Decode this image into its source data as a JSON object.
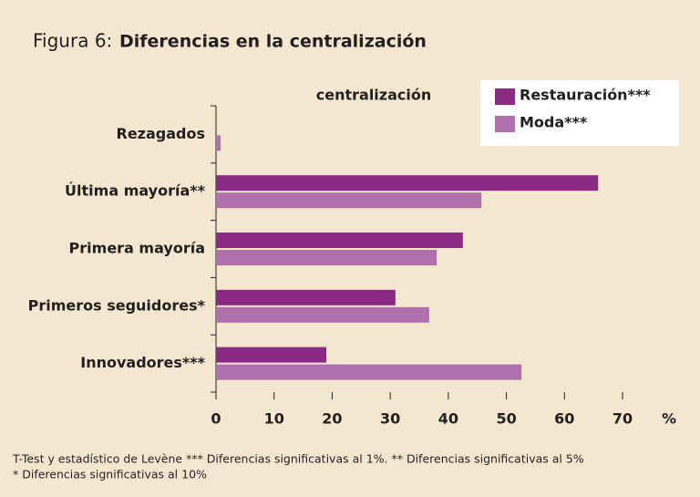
{
  "chart_data": {
    "type": "hbar",
    "figure_label": "Figura 6:",
    "title": "Diferencias en la centralización",
    "subtitle": "centralización",
    "xlabel": "%",
    "categories": [
      "Rezagados",
      "Última mayoría**",
      "Primera mayoría",
      "Primeros seguidores*",
      "Innovadores***"
    ],
    "series": [
      {
        "name": "Restauración***",
        "color": "#8b2a82",
        "values": [
          0,
          65.8,
          42.5,
          30.9,
          19
        ]
      },
      {
        "name": "Moda***",
        "color": "#b070ae",
        "values": [
          0.8,
          45.7,
          38,
          36.7,
          52.6
        ]
      }
    ],
    "xlim": [
      0,
      70
    ],
    "xticks": [
      0,
      10,
      20,
      30,
      40,
      50,
      60,
      70
    ],
    "notes": [
      "T-Test y estadístico de Levène *** Diferencias significativas al 1%. ** Diferencias significativas al 5%",
      "* Diferencias significativas al 10%"
    ]
  }
}
